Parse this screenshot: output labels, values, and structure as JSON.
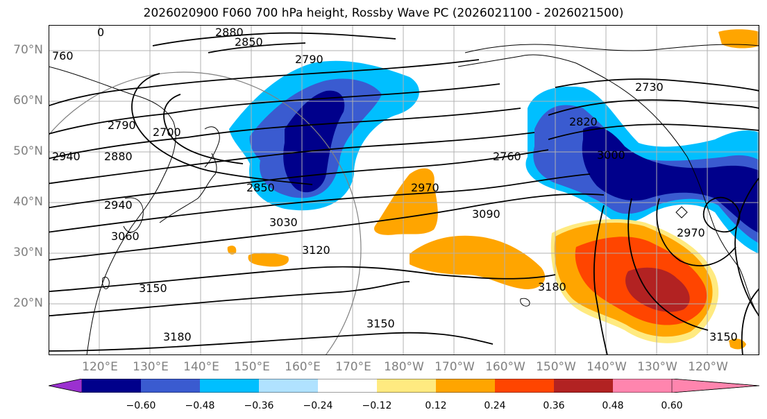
{
  "title": "2026020900 F060 700 hPa height, Rossby Wave PC (2026021100 - 2026021500)",
  "map": {
    "lat_labels": [
      "70°N",
      "60°N",
      "50°N",
      "40°N",
      "30°N",
      "20°N"
    ],
    "lon_labels": [
      "120°E",
      "130°E",
      "140°E",
      "150°E",
      "160°E",
      "170°E",
      "180°W",
      "170°W",
      "160°W",
      "150°W",
      "140°W",
      "130°W",
      "120°W"
    ],
    "contour_labels": [
      "2880",
      "2850",
      "2790",
      "2760",
      "2730",
      "2820",
      "2700",
      "2790",
      "2940",
      "2880",
      "2940",
      "3060",
      "2850",
      "3030",
      "3120",
      "3150",
      "3180",
      "3090",
      "2970",
      "3180",
      "3150",
      "3150",
      "2970",
      "760",
      "0",
      "3000"
    ],
    "colors": {
      "coast": "#000000",
      "grid": "#b0b0b0",
      "contour": "#000000"
    }
  },
  "colorbar": {
    "tick_labels": [
      "−0.60",
      "−0.48",
      "−0.36",
      "−0.24",
      "−0.12",
      "0.12",
      "0.24",
      "0.36",
      "0.48",
      "0.60"
    ],
    "bins": [
      {
        "color": "#9b30d0"
      },
      {
        "color": "#00008b"
      },
      {
        "color": "#3a5bd0"
      },
      {
        "color": "#00bfff"
      },
      {
        "color": "#b0e2ff"
      },
      {
        "color": "#ffffff"
      },
      {
        "color": "#ffea80"
      },
      {
        "color": "#ffa500"
      },
      {
        "color": "#ff4500"
      },
      {
        "color": "#b22222"
      },
      {
        "color": "#ff85ae"
      }
    ]
  }
}
